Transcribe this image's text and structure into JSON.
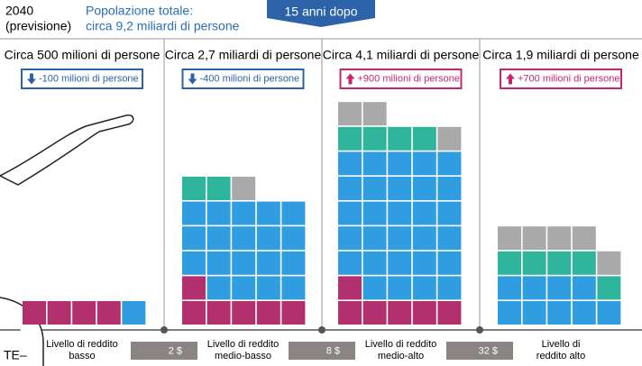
{
  "header": {
    "year": "2040",
    "note": "(previsione)",
    "total_label": "Popolazione totale:",
    "total_value": "circa 9,2 miliardi di persone",
    "banner": "15 anni dopo"
  },
  "columns": [
    {
      "population": "Circa 500 milioni di persone",
      "change": "-100 milioni di persone",
      "trend": "down"
    },
    {
      "population": "Circa 2,7 miliardi di persone",
      "change": "-400 milioni di persone",
      "trend": "down"
    },
    {
      "population": "Circa 4,1 miliardi di persone",
      "change": "+900 milioni di persone",
      "trend": "up"
    },
    {
      "population": "Circa 1,9 miliardi di persone",
      "change": "+700 milioni di persone",
      "trend": "up"
    }
  ],
  "levels": [
    {
      "line1": "Livello di reddito",
      "line2": "basso"
    },
    {
      "line1": "Livello di reddito",
      "line2": "medio-basso"
    },
    {
      "line1": "Livello di reddito",
      "line2": "medio-alto"
    },
    {
      "line1": "Livello di",
      "line2": "reddito alto"
    }
  ],
  "thresholds": [
    "2 $",
    "8 $",
    "32 $"
  ],
  "bubble_text": "TE–"
}
